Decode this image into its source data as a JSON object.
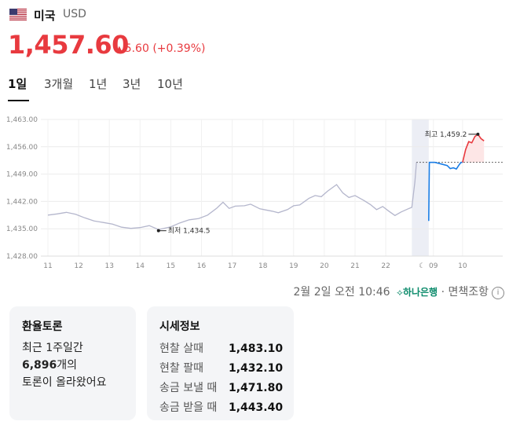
{
  "header": {
    "currency_name": "미국",
    "currency_code": "USD",
    "price": "1,457.60",
    "change": "5.60 (+0.39%)",
    "flag_icon": "us-flag-icon"
  },
  "tabs": [
    {
      "label": "1일",
      "active": true
    },
    {
      "label": "3개월",
      "active": false
    },
    {
      "label": "1년",
      "active": false
    },
    {
      "label": "3년",
      "active": false
    },
    {
      "label": "10년",
      "active": false
    }
  ],
  "chart_data": {
    "type": "line",
    "y_ticks": [
      "1,463.00",
      "1,456.00",
      "1,449.00",
      "1,442.00",
      "1,435.00",
      "1,428.00"
    ],
    "ylim": [
      1428,
      1463
    ],
    "x_ticks": [
      "11",
      "12",
      "13",
      "14",
      "15",
      "16",
      "17",
      "18",
      "19",
      "20",
      "21",
      "22",
      "09",
      "10"
    ],
    "high_label": "최고 1,459.2",
    "low_label": "최저 1,434.5",
    "high": 1459.2,
    "low": 1434.5,
    "reference": 1452.0,
    "night_icon": "moon-icon",
    "colors": {
      "history": "#b4b6cc",
      "down": "#1a7ee6",
      "up": "#e83a3f",
      "up_fill": "#fde6e6",
      "night": "#eceef5"
    },
    "history_series": [
      [
        0,
        1438.5
      ],
      [
        0.3,
        1438.8
      ],
      [
        0.6,
        1439.2
      ],
      [
        0.9,
        1438.7
      ],
      [
        1.2,
        1437.8
      ],
      [
        1.5,
        1437.0
      ],
      [
        1.8,
        1436.6
      ],
      [
        2.1,
        1436.2
      ],
      [
        2.4,
        1435.4
      ],
      [
        2.7,
        1435.1
      ],
      [
        3.0,
        1435.3
      ],
      [
        3.3,
        1435.8
      ],
      [
        3.6,
        1434.8
      ],
      [
        4.0,
        1435.5
      ],
      [
        4.3,
        1436.5
      ],
      [
        4.6,
        1437.3
      ],
      [
        4.9,
        1437.6
      ],
      [
        5.2,
        1438.5
      ],
      [
        5.5,
        1440.3
      ],
      [
        5.7,
        1441.8
      ],
      [
        5.9,
        1440.2
      ],
      [
        6.1,
        1440.8
      ],
      [
        6.4,
        1440.9
      ],
      [
        6.6,
        1441.3
      ],
      [
        6.9,
        1440.1
      ],
      [
        7.1,
        1439.8
      ],
      [
        7.3,
        1439.5
      ],
      [
        7.5,
        1439.1
      ],
      [
        7.8,
        1439.9
      ],
      [
        8.0,
        1440.9
      ],
      [
        8.2,
        1441.1
      ],
      [
        8.5,
        1442.8
      ],
      [
        8.7,
        1443.5
      ],
      [
        8.9,
        1443.2
      ],
      [
        9.1,
        1444.6
      ],
      [
        9.4,
        1446.3
      ],
      [
        9.6,
        1444.2
      ],
      [
        9.8,
        1443.0
      ],
      [
        10.0,
        1443.5
      ],
      [
        10.3,
        1442.2
      ],
      [
        10.5,
        1441.2
      ],
      [
        10.7,
        1439.9
      ],
      [
        10.9,
        1440.7
      ],
      [
        11.1,
        1439.5
      ],
      [
        11.3,
        1438.4
      ],
      [
        11.5,
        1439.3
      ],
      [
        11.7,
        1440.0
      ],
      [
        11.85,
        1440.5
      ],
      [
        11.95,
        1447.0
      ],
      [
        12.0,
        1452.0
      ]
    ],
    "day_series": [
      [
        12.4,
        1437.0
      ],
      [
        12.42,
        1452.0
      ],
      [
        12.6,
        1452.0
      ],
      [
        12.8,
        1451.6
      ],
      [
        13.0,
        1451.2
      ],
      [
        13.1,
        1450.4
      ],
      [
        13.2,
        1450.6
      ],
      [
        13.3,
        1450.3
      ],
      [
        13.4,
        1451.5
      ],
      [
        13.45,
        1452.0
      ],
      [
        13.5,
        1452.0
      ],
      [
        13.6,
        1455.3
      ],
      [
        13.7,
        1457.3
      ],
      [
        13.8,
        1457.0
      ],
      [
        13.9,
        1458.6
      ],
      [
        14.0,
        1459.2
      ],
      [
        14.1,
        1458.1
      ],
      [
        14.2,
        1457.5
      ]
    ]
  },
  "source": {
    "timestamp": "2월 2일 오전 10:46",
    "bank": "하나은행",
    "separator": "·",
    "label": "면책조항",
    "bank_icon": "hana-bank-logo-icon",
    "info_icon": "info-icon"
  },
  "discussion_card": {
    "title": "환율토론",
    "line1": "최근 1주일간",
    "count": "6,896",
    "count_suffix": "개의",
    "line3": "토론이 올라왔어요"
  },
  "market_card": {
    "title": "시세정보",
    "rows": [
      {
        "label": "현찰 살때",
        "value": "1,483.10"
      },
      {
        "label": "현찰 팔때",
        "value": "1,432.10"
      },
      {
        "label": "송금 보낼 때",
        "value": "1,471.80"
      },
      {
        "label": "송금 받을 때",
        "value": "1,443.40"
      }
    ]
  }
}
